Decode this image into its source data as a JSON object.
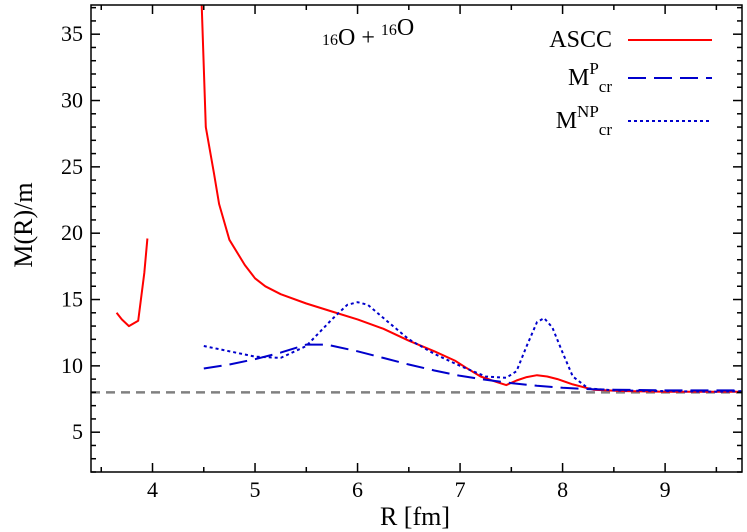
{
  "chart_data": {
    "type": "line",
    "xlabel": "R [fm]",
    "ylabel": "M(R)/m",
    "xlim": [
      3.4,
      9.75
    ],
    "ylim": [
      2,
      37.2
    ],
    "x_ticks": [
      4,
      5,
      6,
      7,
      8,
      9
    ],
    "y_ticks": [
      5,
      10,
      15,
      20,
      25,
      30,
      35
    ],
    "grid": false,
    "legend": "top-right",
    "annotation": {
      "parts": [
        {
          "text": "16",
          "sup": true
        },
        {
          "text": "O + ",
          "sup": false
        },
        {
          "text": "16",
          "sup": true
        },
        {
          "text": "O",
          "sup": false
        }
      ]
    },
    "reference_line": {
      "y": 8.0,
      "color": "#808080",
      "style": "dashed"
    },
    "series": [
      {
        "name": "ASCC",
        "legend_parts": [
          {
            "text": "ASCC",
            "script": "none"
          }
        ],
        "color": "#ff0000",
        "style": "solid",
        "segments": [
          [
            [
              3.65,
              14.0
            ],
            [
              3.7,
              13.5
            ],
            [
              3.77,
              13.0
            ],
            [
              3.86,
              13.4
            ],
            [
              3.92,
              17.0
            ],
            [
              3.95,
              19.6
            ]
          ],
          [
            [
              4.48,
              37.2
            ],
            [
              4.52,
              28.0
            ],
            [
              4.6,
              24.5
            ],
            [
              4.65,
              22.2
            ],
            [
              4.75,
              19.5
            ],
            [
              4.9,
              17.6
            ],
            [
              5.0,
              16.6
            ],
            [
              5.1,
              16.0
            ],
            [
              5.25,
              15.4
            ],
            [
              5.5,
              14.7
            ],
            [
              5.75,
              14.1
            ],
            [
              6.0,
              13.5
            ],
            [
              6.25,
              12.8
            ],
            [
              6.5,
              11.9
            ],
            [
              6.75,
              11.1
            ],
            [
              6.95,
              10.4
            ],
            [
              7.05,
              9.9
            ],
            [
              7.2,
              9.2
            ],
            [
              7.35,
              8.8
            ],
            [
              7.45,
              8.55
            ],
            [
              7.55,
              8.9
            ],
            [
              7.65,
              9.15
            ],
            [
              7.75,
              9.3
            ],
            [
              7.85,
              9.2
            ],
            [
              7.95,
              9.0
            ],
            [
              8.1,
              8.6
            ],
            [
              8.3,
              8.2
            ],
            [
              8.6,
              8.1
            ],
            [
              9.0,
              8.05
            ],
            [
              9.4,
              8.05
            ],
            [
              9.75,
              8.05
            ]
          ]
        ]
      },
      {
        "name": "MPcr",
        "legend_parts": [
          {
            "text": "M",
            "script": "none"
          },
          {
            "text": "P",
            "script": "sup"
          },
          {
            "text": "cr",
            "script": "sub"
          }
        ],
        "color": "#0000cc",
        "style": "dashed",
        "segments": [
          [
            [
              4.5,
              9.8
            ],
            [
              4.75,
              10.1
            ],
            [
              5.0,
              10.5
            ],
            [
              5.25,
              11.0
            ],
            [
              5.5,
              11.6
            ],
            [
              5.7,
              11.6
            ],
            [
              6.0,
              11.1
            ],
            [
              6.25,
              10.6
            ],
            [
              6.5,
              10.1
            ],
            [
              6.75,
              9.65
            ],
            [
              7.0,
              9.25
            ],
            [
              7.25,
              8.95
            ],
            [
              7.5,
              8.7
            ],
            [
              7.75,
              8.5
            ],
            [
              8.0,
              8.35
            ],
            [
              8.25,
              8.25
            ],
            [
              8.5,
              8.2
            ],
            [
              9.0,
              8.15
            ],
            [
              9.5,
              8.15
            ],
            [
              9.75,
              8.15
            ]
          ]
        ]
      },
      {
        "name": "MNPcr",
        "legend_parts": [
          {
            "text": "M",
            "script": "none"
          },
          {
            "text": "NP",
            "script": "sup"
          },
          {
            "text": "cr",
            "script": "sub"
          }
        ],
        "color": "#0000cc",
        "style": "dotted",
        "segments": [
          [
            [
              4.5,
              11.5
            ],
            [
              4.75,
              11.1
            ],
            [
              5.0,
              10.7
            ],
            [
              5.25,
              10.6
            ],
            [
              5.5,
              11.5
            ],
            [
              5.75,
              13.5
            ],
            [
              5.9,
              14.6
            ],
            [
              6.0,
              14.8
            ],
            [
              6.1,
              14.6
            ],
            [
              6.3,
              13.3
            ],
            [
              6.5,
              12.0
            ],
            [
              6.75,
              10.9
            ],
            [
              7.0,
              10.0
            ],
            [
              7.25,
              9.2
            ],
            [
              7.45,
              9.1
            ],
            [
              7.55,
              9.6
            ],
            [
              7.65,
              11.5
            ],
            [
              7.75,
              13.3
            ],
            [
              7.82,
              13.6
            ],
            [
              7.9,
              12.9
            ],
            [
              8.0,
              11.0
            ],
            [
              8.1,
              9.2
            ],
            [
              8.25,
              8.3
            ],
            [
              8.5,
              8.15
            ],
            [
              9.0,
              8.1
            ],
            [
              9.5,
              8.05
            ],
            [
              9.75,
              8.1
            ]
          ]
        ]
      }
    ]
  }
}
